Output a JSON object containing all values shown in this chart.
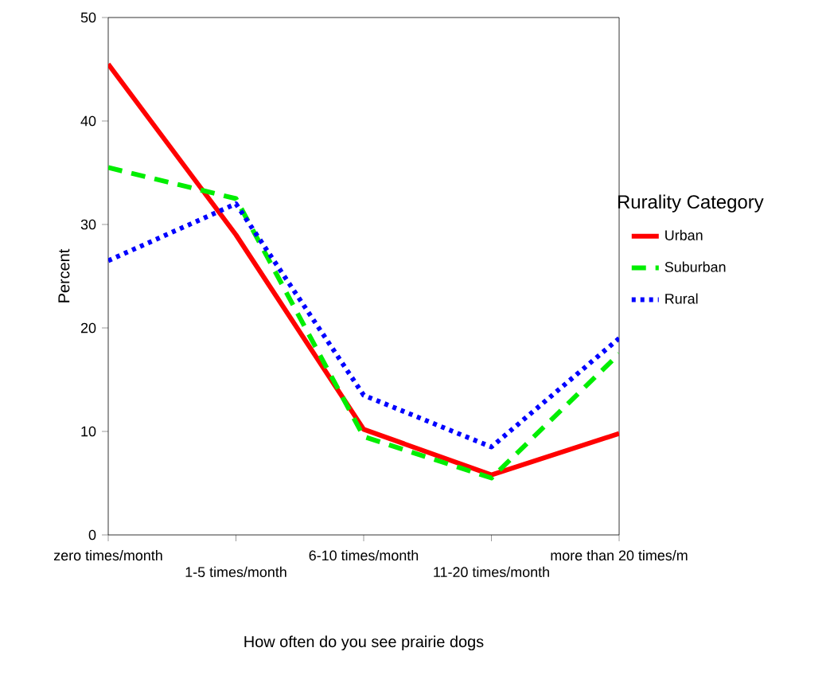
{
  "chart_data": {
    "type": "line",
    "xlabel": "How often do you see prairie dogs",
    "ylabel": "Percent",
    "legend_title": "Rurality Category",
    "categories": [
      "zero times/month",
      "1-5 times/month",
      "6-10 times/month",
      "11-20 times/month",
      "more than 20 times/m"
    ],
    "ylim": [
      0,
      50
    ],
    "yticks": [
      0,
      10,
      20,
      30,
      40,
      50
    ],
    "grid": false,
    "legend": "right",
    "marker": "none",
    "series": [
      {
        "name": "Urban",
        "color": "#ff0000",
        "line_style": "solid",
        "values": [
          45.5,
          29,
          10.2,
          5.8,
          9.8
        ]
      },
      {
        "name": "Suburban",
        "color": "#00ee00",
        "line_style": "dashed",
        "values": [
          35.5,
          32.5,
          9.5,
          5.5,
          17.5
        ]
      },
      {
        "name": "Rural",
        "color": "#0000ff",
        "line_style": "dotted",
        "values": [
          26.5,
          32,
          13.5,
          8.5,
          19
        ]
      }
    ]
  }
}
